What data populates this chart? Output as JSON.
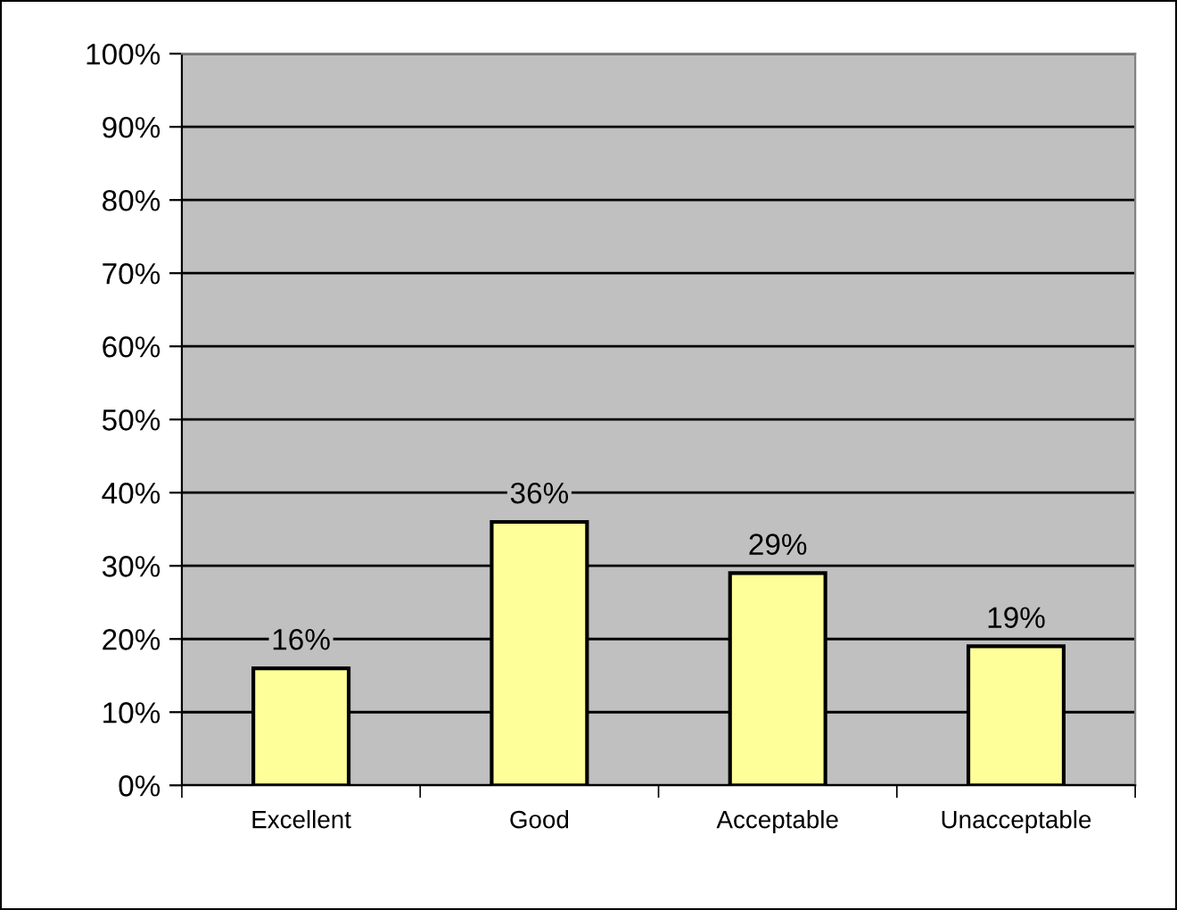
{
  "chart_data": {
    "type": "bar",
    "categories": [
      "Excellent",
      "Good",
      "Acceptable",
      "Unacceptable"
    ],
    "values": [
      16,
      36,
      29,
      19
    ],
    "value_labels": [
      "16%",
      "36%",
      "29%",
      "19%"
    ],
    "color": "#ffff99",
    "ylim": [
      0,
      100
    ],
    "yticks": [
      {
        "value": 0,
        "label": "0%"
      },
      {
        "value": 10,
        "label": "10%"
      },
      {
        "value": 20,
        "label": "20%"
      },
      {
        "value": 30,
        "label": "30%"
      },
      {
        "value": 40,
        "label": "40%"
      },
      {
        "value": 50,
        "label": "50%"
      },
      {
        "value": 60,
        "label": "60%"
      },
      {
        "value": 70,
        "label": "70%"
      },
      {
        "value": 80,
        "label": "80%"
      },
      {
        "value": 90,
        "label": "90%"
      },
      {
        "value": 100,
        "label": "100%"
      }
    ],
    "grid": "y",
    "legend": false
  }
}
